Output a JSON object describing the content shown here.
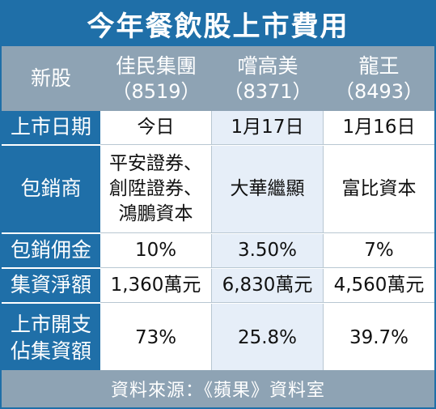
{
  "title": "今年餐飲股上市費用",
  "columns": [
    {
      "name": "新股",
      "code": ""
    },
    {
      "name": "佳民集團",
      "code": "（8519）"
    },
    {
      "name": "嚐高美",
      "code": "（8371）"
    },
    {
      "name": "龍王",
      "code": "（8493）"
    }
  ],
  "rows": [
    {
      "label": [
        "上市日期"
      ],
      "values": [
        [
          "今日"
        ],
        [
          "1月17日"
        ],
        [
          "1月16日"
        ]
      ]
    },
    {
      "label": [
        "包銷商"
      ],
      "values": [
        [
          "平安證券、",
          "創陞證券、",
          "鴻鵬資本"
        ],
        [
          "大華繼顯"
        ],
        [
          "富比資本"
        ]
      ]
    },
    {
      "label": [
        "包銷佣金"
      ],
      "values": [
        [
          "10%"
        ],
        [
          "3.50%"
        ],
        [
          "7%"
        ]
      ]
    },
    {
      "label": [
        "集資淨額"
      ],
      "values": [
        [
          "1,360萬元"
        ],
        [
          "6,830萬元"
        ],
        [
          "4,560萬元"
        ]
      ]
    },
    {
      "label": [
        "上市開支",
        "佔集資額"
      ],
      "values": [
        [
          "73%"
        ],
        [
          "25.8%"
        ],
        [
          "39.7%"
        ]
      ]
    }
  ],
  "source": "資料來源：《蘋果》資料室"
}
